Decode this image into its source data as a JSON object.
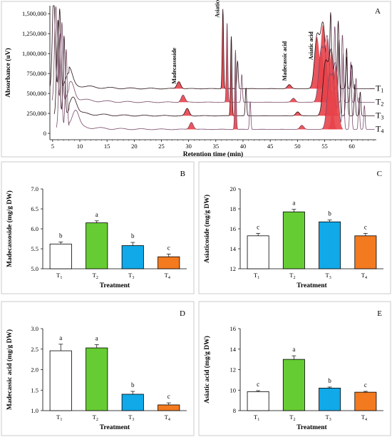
{
  "colors": {
    "trace": "#2a1015",
    "trace_alt": "#7a4a6a",
    "peak_fill": "#e8434a",
    "bar_T1": "#ffffff",
    "bar_T2": "#66cc33",
    "bar_T3": "#11a9e8",
    "bar_T4": "#f47a1f",
    "border": "#bfbfbf"
  },
  "chart_data": [
    {
      "type": "line",
      "panel": "A",
      "xlabel": "Retention time (min)",
      "ylabel": "Absorbance (uV)",
      "xlim": [
        4.5,
        64.5
      ],
      "ylim": [
        -80000,
        1600000
      ],
      "x_ticks": [
        "5",
        "10",
        "15",
        "20",
        "25",
        "30",
        "35",
        "40",
        "45",
        "50",
        "55",
        "60"
      ],
      "y_ticks": [
        "0",
        "250,000",
        "500,000",
        "750,000",
        "1,000,000",
        "1,250,000",
        "1,500,000"
      ],
      "peak_labels": [
        {
          "text": "Madecassoside",
          "x": 28.2
        },
        {
          "text": "Asiaticoside",
          "x": 36.3
        },
        {
          "text": "Madecassic acid",
          "x": 48.5
        },
        {
          "text": "Asiatic acid",
          "x": 53.5
        }
      ],
      "traces": [
        {
          "name": "T1",
          "sub": "1",
          "label": "T",
          "baseline": 560000,
          "shift": 0
        },
        {
          "name": "T2",
          "sub": "2",
          "label": "T",
          "baseline": 390000,
          "shift": 1.4
        },
        {
          "name": "T3",
          "sub": "3",
          "label": "T",
          "baseline": 220000,
          "shift": 2.8
        },
        {
          "name": "T4",
          "sub": "4",
          "label": "T",
          "baseline": 50000,
          "shift": 4.2
        }
      ]
    },
    {
      "type": "bar",
      "panel": "B",
      "xlabel": "Treatment",
      "ylabel": "Madecassoside (mg/g DW)",
      "categories": [
        "T1",
        "T2",
        "T3",
        "T4"
      ],
      "values": [
        5.62,
        6.15,
        5.58,
        5.3
      ],
      "errors": [
        0.05,
        0.05,
        0.08,
        0.07
      ],
      "letters": [
        "b",
        "a",
        "b",
        "c"
      ],
      "ylim": [
        5.0,
        7.0
      ],
      "y_ticks": [
        "5.0",
        "5.5",
        "6.0",
        "6.5",
        "7.0"
      ]
    },
    {
      "type": "bar",
      "panel": "C",
      "xlabel": "Treatment",
      "ylabel": "Asiaticoside (mg/g DW)",
      "categories": [
        "T1",
        "T2",
        "T3",
        "T4"
      ],
      "values": [
        15.3,
        17.7,
        16.7,
        15.3
      ],
      "errors": [
        0.25,
        0.25,
        0.18,
        0.25
      ],
      "letters": [
        "c",
        "a",
        "b",
        "c"
      ],
      "ylim": [
        12,
        20
      ],
      "y_ticks": [
        "12",
        "14",
        "16",
        "18",
        "20"
      ]
    },
    {
      "type": "bar",
      "panel": "D",
      "xlabel": "Treatment",
      "ylabel": "Madecassic acid (mg/g DW)",
      "categories": [
        "T1",
        "T2",
        "T3",
        "T4"
      ],
      "values": [
        2.46,
        2.53,
        1.4,
        1.14
      ],
      "errors": [
        0.16,
        0.08,
        0.07,
        0.05
      ],
      "letters": [
        "a",
        "a",
        "b",
        "c"
      ],
      "ylim": [
        1.0,
        3.0
      ],
      "y_ticks": [
        "1.0",
        "1.5",
        "2.0",
        "2.5",
        "3.0"
      ]
    },
    {
      "type": "bar",
      "panel": "E",
      "xlabel": "Treatment",
      "ylabel": "Asiatic acid (mg/g DW)",
      "categories": [
        "T1",
        "T2",
        "T3",
        "T4"
      ],
      "values": [
        9.85,
        13.0,
        10.2,
        9.8
      ],
      "errors": [
        0.1,
        0.35,
        0.1,
        0.08
      ],
      "letters": [
        "c",
        "a",
        "b",
        "c"
      ],
      "ylim": [
        8,
        16
      ],
      "y_ticks": [
        "8",
        "10",
        "12",
        "14",
        "16"
      ]
    }
  ]
}
